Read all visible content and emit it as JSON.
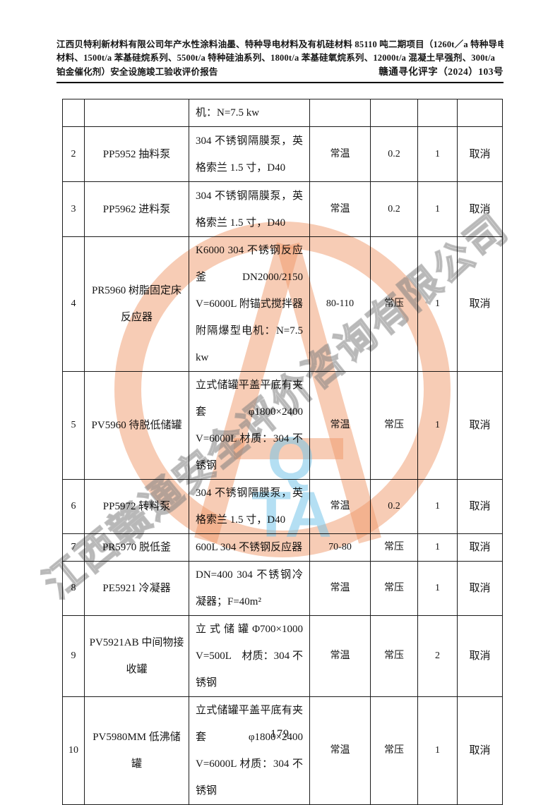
{
  "header": {
    "line1": "江西贝特利新材料有限公司年产水性涂料油墨、特种导电材料及有机硅材料 85110 吨二期项目（1260t／a 特种导电",
    "line2": "材料、1500t/a 苯基硅烷系列、5500t/a 特种硅油系列、1800t/a 苯基硅氧烷系列、12000t/a 混凝土早强剂、300t/a",
    "line3_left": "铂金催化剂）安全设施竣工验收评价报告",
    "line3_right": "赣通寻化评字（2024）103号"
  },
  "table": {
    "rows": [
      {
        "no": "",
        "name": "",
        "spec": "机：N=7.5 kw",
        "temp": "",
        "pressure": "",
        "qty": "",
        "status": ""
      },
      {
        "no": "2",
        "name": "PP5952 抽料泵",
        "spec": "304 不锈钢隔膜泵，英格索兰 1.5 寸，D40",
        "temp": "常温",
        "pressure": "0.2",
        "qty": "1",
        "status": "取消"
      },
      {
        "no": "3",
        "name": "PP5962 进料泵",
        "spec": "304 不锈钢隔膜泵，英格索兰 1.5 寸，D40",
        "temp": "常温",
        "pressure": "0.2",
        "qty": "1",
        "status": "取消"
      },
      {
        "no": "4",
        "name": "PR5960 树脂固定床反应器",
        "spec": "K6000 304 不锈钢反应釜 DN2000/2150 V=6000L 附锚式搅拌器 附隔爆型电机：N=7.5 kw",
        "temp": "80-110",
        "pressure": "常压",
        "qty": "1",
        "status": "取消"
      },
      {
        "no": "5",
        "name": "PV5960 待脱低储罐",
        "spec": "立式储罐平盖平底有夹套 φ1800×2400　V=6000L 材质：304 不锈钢",
        "temp": "常温",
        "pressure": "常压",
        "qty": "1",
        "status": "取消"
      },
      {
        "no": "6",
        "name": "PP5972 转料泵",
        "spec": "304 不锈钢隔膜泵，英格索兰 1.5 寸，D40",
        "temp": "常温",
        "pressure": "0.2",
        "qty": "1",
        "status": "取消"
      },
      {
        "no": "7",
        "name": "PR5970 脱低釜",
        "spec": "600L 304 不锈钢反应器",
        "temp": "70-80",
        "pressure": "常压",
        "qty": "1",
        "status": "取消"
      },
      {
        "no": "8",
        "name": "PE5921 冷凝器",
        "spec": "DN=400 304 不锈钢冷凝器；F=40m²",
        "temp": "常温",
        "pressure": "常压",
        "qty": "1",
        "status": "取消"
      },
      {
        "no": "9",
        "name": "PV5921AB 中间物接收罐",
        "spec": "立 式 储 罐 Φ700×1000 V=500L　材质：304 不锈钢",
        "temp": "常温",
        "pressure": "常压",
        "qty": "2",
        "status": "取消"
      },
      {
        "no": "10",
        "name": "PV5980MM 低沸储罐",
        "spec": "立式储罐平盖平底有夹套 φ1800×2400　V=6000L 材质：304 不锈钢",
        "temp": "常温",
        "pressure": "常压",
        "qty": "1",
        "status": "取消"
      }
    ]
  },
  "watermark": {
    "company_text": "江西赣通安全评价咨询有限公司",
    "letter_q": "Q",
    "letters_ta": "TA",
    "ring_color": "#ee9669",
    "gray_text_color": "#7d7d7d",
    "blue_text_color": "#76c4e9"
  },
  "footer": {
    "page_number": "179"
  }
}
